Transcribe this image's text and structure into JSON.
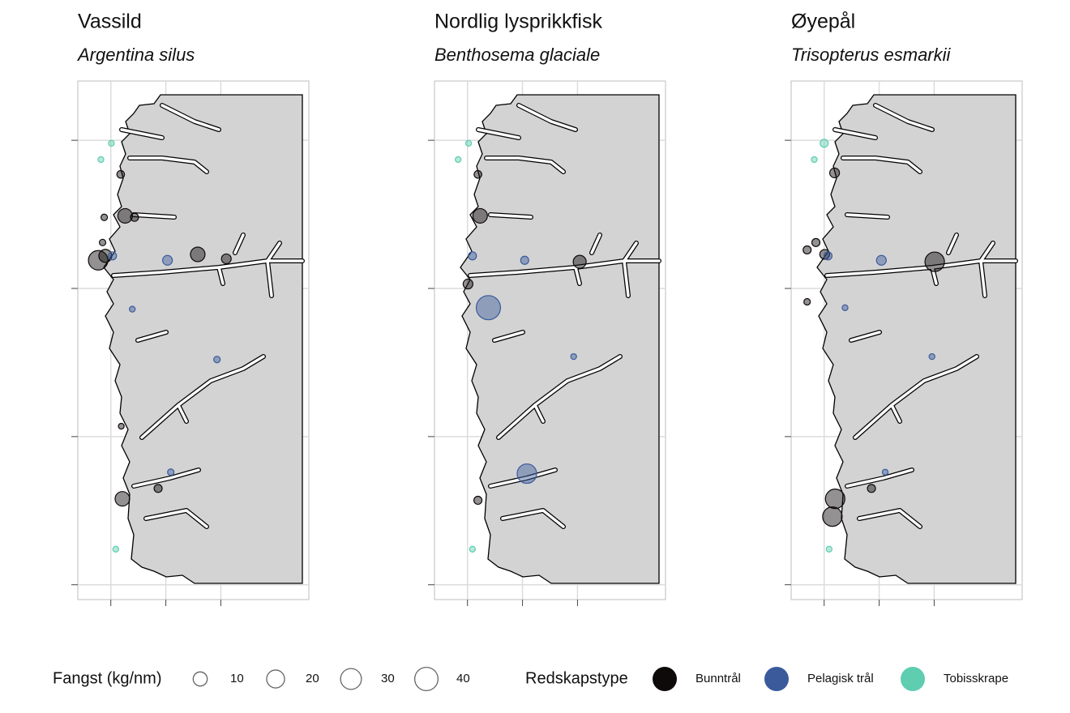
{
  "chart_data": [
    {
      "type": "bubble-map",
      "title": "Vassild",
      "subtitle": "Argentina silus",
      "xlim": [
        4.4,
        8.6
      ],
      "ylim": [
        58.9,
        62.4
      ],
      "xticks": [
        5,
        6,
        7
      ],
      "yticks": [
        59,
        60,
        61,
        62
      ],
      "points": [
        {
          "x": 5.01,
          "y": 61.98,
          "value": 0.1,
          "gear": "Tobisskrape"
        },
        {
          "x": 4.82,
          "y": 61.87,
          "value": 0.1,
          "gear": "Tobisskrape"
        },
        {
          "x": 5.18,
          "y": 61.77,
          "value": 0.9,
          "gear": "Bunntrål"
        },
        {
          "x": 4.88,
          "y": 61.48,
          "value": 0.3,
          "gear": "Bunntrål"
        },
        {
          "x": 5.26,
          "y": 61.49,
          "value": 11,
          "gear": "Bunntrål"
        },
        {
          "x": 5.43,
          "y": 61.48,
          "value": 1.2,
          "gear": "Bunntrål"
        },
        {
          "x": 4.85,
          "y": 61.31,
          "value": 0.3,
          "gear": "Bunntrål"
        },
        {
          "x": 4.77,
          "y": 61.19,
          "value": 25,
          "gear": "Bunntrål"
        },
        {
          "x": 4.9,
          "y": 61.22,
          "value": 7.7,
          "gear": "Bunntrål"
        },
        {
          "x": 5.03,
          "y": 61.22,
          "value": 1.2,
          "gear": "Pelagisk trål"
        },
        {
          "x": 6.03,
          "y": 61.19,
          "value": 2.8,
          "gear": "Pelagisk trål"
        },
        {
          "x": 6.58,
          "y": 61.23,
          "value": 11,
          "gear": "Bunntrål"
        },
        {
          "x": 7.1,
          "y": 61.2,
          "value": 2.8,
          "gear": "Bunntrål"
        },
        {
          "x": 5.39,
          "y": 60.86,
          "value": 0.1,
          "gear": "Pelagisk trål"
        },
        {
          "x": 6.93,
          "y": 60.52,
          "value": 0.3,
          "gear": "Pelagisk trål"
        },
        {
          "x": 5.86,
          "y": 59.65,
          "value": 1.2,
          "gear": "Bunntrål"
        },
        {
          "x": 6.09,
          "y": 59.76,
          "value": 0.3,
          "gear": "Pelagisk trål"
        },
        {
          "x": 5.21,
          "y": 59.58,
          "value": 11,
          "gear": "Bunntrål"
        },
        {
          "x": 5.19,
          "y": 60.07,
          "value": 0.1,
          "gear": "Bunntrål"
        },
        {
          "x": 5.09,
          "y": 59.24,
          "value": 0.1,
          "gear": "Tobisskrape"
        }
      ]
    },
    {
      "type": "bubble-map",
      "title": "Nordlig lysprikkfisk",
      "subtitle": "Benthosema glaciale",
      "xlim": [
        4.4,
        8.6
      ],
      "ylim": [
        58.9,
        62.4
      ],
      "xticks": [
        5,
        6,
        7
      ],
      "yticks": [
        59,
        60,
        61,
        62
      ],
      "points": [
        {
          "x": 5.02,
          "y": 61.98,
          "value": 0.1,
          "gear": "Tobisskrape"
        },
        {
          "x": 4.83,
          "y": 61.87,
          "value": 0.1,
          "gear": "Tobisskrape"
        },
        {
          "x": 5.19,
          "y": 61.77,
          "value": 0.9,
          "gear": "Bunntrål"
        },
        {
          "x": 5.23,
          "y": 61.49,
          "value": 11,
          "gear": "Bunntrål"
        },
        {
          "x": 5.09,
          "y": 61.22,
          "value": 1.2,
          "gear": "Pelagisk trål"
        },
        {
          "x": 6.04,
          "y": 61.19,
          "value": 1.2,
          "gear": "Pelagisk trål"
        },
        {
          "x": 7.04,
          "y": 61.18,
          "value": 7.7,
          "gear": "Bunntrål"
        },
        {
          "x": 5.01,
          "y": 61.03,
          "value": 2.8,
          "gear": "Bunntrål"
        },
        {
          "x": 5.38,
          "y": 60.87,
          "value": 44,
          "gear": "Pelagisk trål"
        },
        {
          "x": 6.08,
          "y": 59.75,
          "value": 25,
          "gear": "Pelagisk trål"
        },
        {
          "x": 6.93,
          "y": 60.54,
          "value": 0.1,
          "gear": "Pelagisk trål"
        },
        {
          "x": 5.19,
          "y": 59.57,
          "value": 1.2,
          "gear": "Bunntrål"
        },
        {
          "x": 5.09,
          "y": 59.24,
          "value": 0.1,
          "gear": "Tobisskrape"
        }
      ]
    },
    {
      "type": "bubble-map",
      "title": "Øyepål",
      "subtitle": "Trisopterus esmarkii",
      "xlim": [
        4.4,
        8.6
      ],
      "ylim": [
        58.9,
        62.4
      ],
      "xticks": [
        5,
        6,
        7
      ],
      "yticks": [
        59,
        60,
        61,
        62
      ],
      "points": [
        {
          "x": 5.0,
          "y": 61.98,
          "value": 1.2,
          "gear": "Tobisskrape"
        },
        {
          "x": 4.82,
          "y": 61.87,
          "value": 0.1,
          "gear": "Tobisskrape"
        },
        {
          "x": 5.19,
          "y": 61.78,
          "value": 2.8,
          "gear": "Bunntrål"
        },
        {
          "x": 4.85,
          "y": 61.31,
          "value": 1.2,
          "gear": "Bunntrål"
        },
        {
          "x": 4.69,
          "y": 61.26,
          "value": 1.2,
          "gear": "Bunntrål"
        },
        {
          "x": 5.01,
          "y": 61.23,
          "value": 2.8,
          "gear": "Bunntrål"
        },
        {
          "x": 5.07,
          "y": 61.22,
          "value": 1.2,
          "gear": "Pelagisk trål"
        },
        {
          "x": 6.04,
          "y": 61.19,
          "value": 2.8,
          "gear": "Pelagisk trål"
        },
        {
          "x": 7.01,
          "y": 61.18,
          "value": 25,
          "gear": "Bunntrål"
        },
        {
          "x": 4.69,
          "y": 60.91,
          "value": 0.3,
          "gear": "Bunntrål"
        },
        {
          "x": 5.38,
          "y": 60.87,
          "value": 0.1,
          "gear": "Pelagisk trål"
        },
        {
          "x": 6.96,
          "y": 60.54,
          "value": 0.1,
          "gear": "Pelagisk trål"
        },
        {
          "x": 5.86,
          "y": 59.65,
          "value": 1.2,
          "gear": "Bunntrål"
        },
        {
          "x": 6.11,
          "y": 59.76,
          "value": 0.1,
          "gear": "Pelagisk trål"
        },
        {
          "x": 5.2,
          "y": 59.58,
          "value": 25,
          "gear": "Bunntrål"
        },
        {
          "x": 5.15,
          "y": 59.46,
          "value": 25,
          "gear": "Bunntrål"
        },
        {
          "x": 5.09,
          "y": 59.24,
          "value": 0.1,
          "gear": "Tobisskrape"
        }
      ]
    }
  ],
  "legend": {
    "size": {
      "title": "Fangst (kg/nm)",
      "values": [
        10,
        20,
        30,
        40
      ]
    },
    "color": {
      "title": "Redskapstype",
      "entries": [
        {
          "name": "Bunntrål",
          "color": "#0f0a0a"
        },
        {
          "name": "Pelagisk trål",
          "color": "#3a5a9c"
        },
        {
          "name": "Tobisskrape",
          "color": "#5ecdb0"
        }
      ]
    }
  }
}
